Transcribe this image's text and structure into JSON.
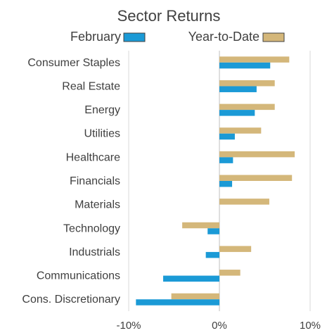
{
  "chart_data": {
    "type": "bar",
    "orientation": "horizontal",
    "title": "Sector Returns",
    "categories": [
      "Consumer Staples",
      "Real Estate",
      "Energy",
      "Utilities",
      "Healthcare",
      "Financials",
      "Materials",
      "Technology",
      "Industrials",
      "Communications",
      "Cons. Discretionary"
    ],
    "series": [
      {
        "name": "February",
        "color": "#1B9AD6",
        "values": [
          5.6,
          4.1,
          3.9,
          1.7,
          1.5,
          1.4,
          0.0,
          -1.3,
          -1.5,
          -6.2,
          -9.2
        ]
      },
      {
        "name": "Year-to-Date",
        "color": "#D4B77A",
        "values": [
          7.7,
          6.1,
          6.1,
          4.6,
          8.3,
          8.0,
          5.5,
          -4.1,
          3.5,
          2.3,
          -5.3
        ]
      }
    ],
    "xlim": [
      -10,
      10
    ],
    "xticks": [
      -10,
      0,
      10
    ],
    "xtick_labels": [
      "-10%",
      "0%",
      "10%"
    ],
    "grid": true,
    "legend_position": "top"
  }
}
